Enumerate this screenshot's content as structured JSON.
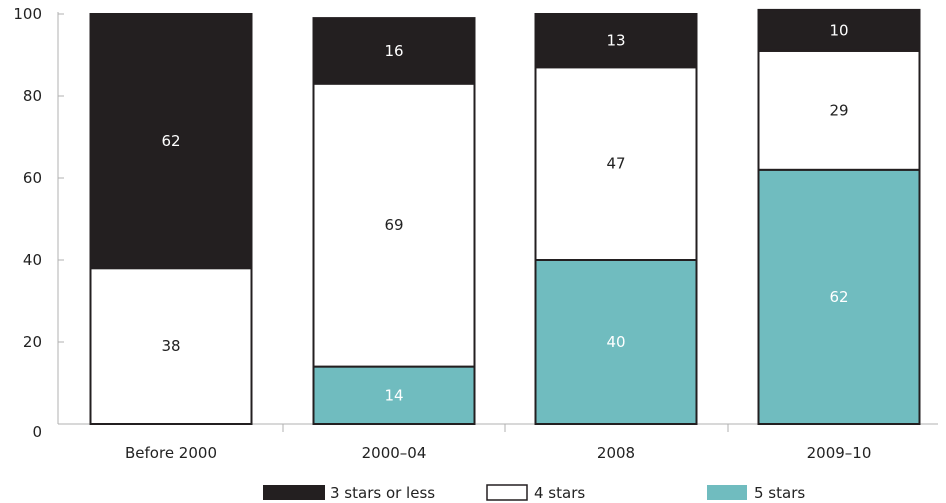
{
  "chart_data": {
    "type": "bar",
    "stacked": true,
    "title": "",
    "xlabel": "",
    "ylabel": "",
    "ylim": [
      0,
      100
    ],
    "y_ticks": [
      0,
      20,
      40,
      60,
      80,
      100
    ],
    "grid": false,
    "legend_position": "bottom",
    "categories": [
      "Before 2000",
      "2000–04",
      "2008",
      "2009–10"
    ],
    "series": [
      {
        "name": "5 stars",
        "color": "#70bcbf",
        "label_color": "#ffffff",
        "values": [
          0,
          14,
          40,
          62
        ]
      },
      {
        "name": "4 stars",
        "color": "#ffffff",
        "label_color": "#222222",
        "values": [
          38,
          69,
          47,
          29
        ]
      },
      {
        "name": "3 stars or less",
        "color": "#231f20",
        "label_color": "#ffffff",
        "values": [
          62,
          16,
          13,
          10
        ]
      }
    ],
    "legend_order": [
      "3 stars or less",
      "4 stars",
      "5 stars"
    ]
  }
}
